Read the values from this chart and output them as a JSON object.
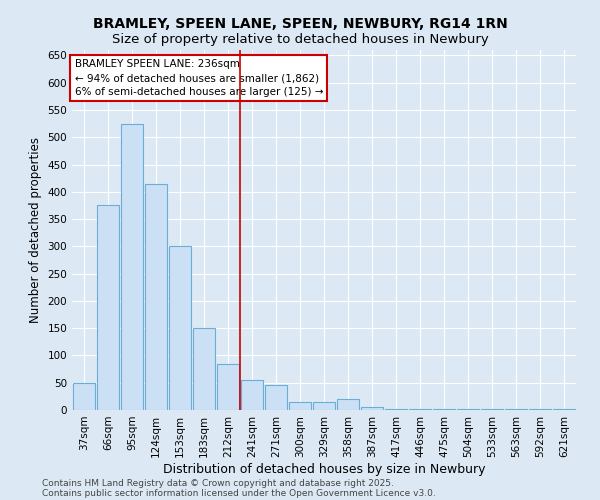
{
  "title": "BRAMLEY, SPEEN LANE, SPEEN, NEWBURY, RG14 1RN",
  "subtitle": "Size of property relative to detached houses in Newbury",
  "xlabel": "Distribution of detached houses by size in Newbury",
  "ylabel": "Number of detached properties",
  "categories": [
    "37sqm",
    "66sqm",
    "95sqm",
    "124sqm",
    "153sqm",
    "183sqm",
    "212sqm",
    "241sqm",
    "271sqm",
    "300sqm",
    "329sqm",
    "358sqm",
    "387sqm",
    "417sqm",
    "446sqm",
    "475sqm",
    "504sqm",
    "533sqm",
    "563sqm",
    "592sqm",
    "621sqm"
  ],
  "values": [
    50,
    375,
    525,
    415,
    300,
    150,
    85,
    55,
    45,
    15,
    15,
    20,
    5,
    2,
    2,
    2,
    1,
    1,
    1,
    1,
    1
  ],
  "bar_color": "#cce0f5",
  "bar_edge_color": "#6aaed6",
  "bar_edge_width": 0.8,
  "annotation_title": "BRAMLEY SPEEN LANE: 236sqm",
  "annotation_line1": "← 94% of detached houses are smaller (1,862)",
  "annotation_line2": "6% of semi-detached houses are larger (125) →",
  "ylim": [
    0,
    660
  ],
  "yticks": [
    0,
    50,
    100,
    150,
    200,
    250,
    300,
    350,
    400,
    450,
    500,
    550,
    600,
    650
  ],
  "background_color": "#dce9f5",
  "plot_bg_color": "#dce9f5",
  "grid_color": "#ffffff",
  "footer_line1": "Contains HM Land Registry data © Crown copyright and database right 2025.",
  "footer_line2": "Contains public sector information licensed under the Open Government Licence v3.0.",
  "title_fontsize": 10,
  "subtitle_fontsize": 9.5,
  "xlabel_fontsize": 9,
  "ylabel_fontsize": 8.5,
  "tick_fontsize": 7.5,
  "annotation_fontsize": 7.5,
  "footer_fontsize": 6.5,
  "red_line_index": 7
}
